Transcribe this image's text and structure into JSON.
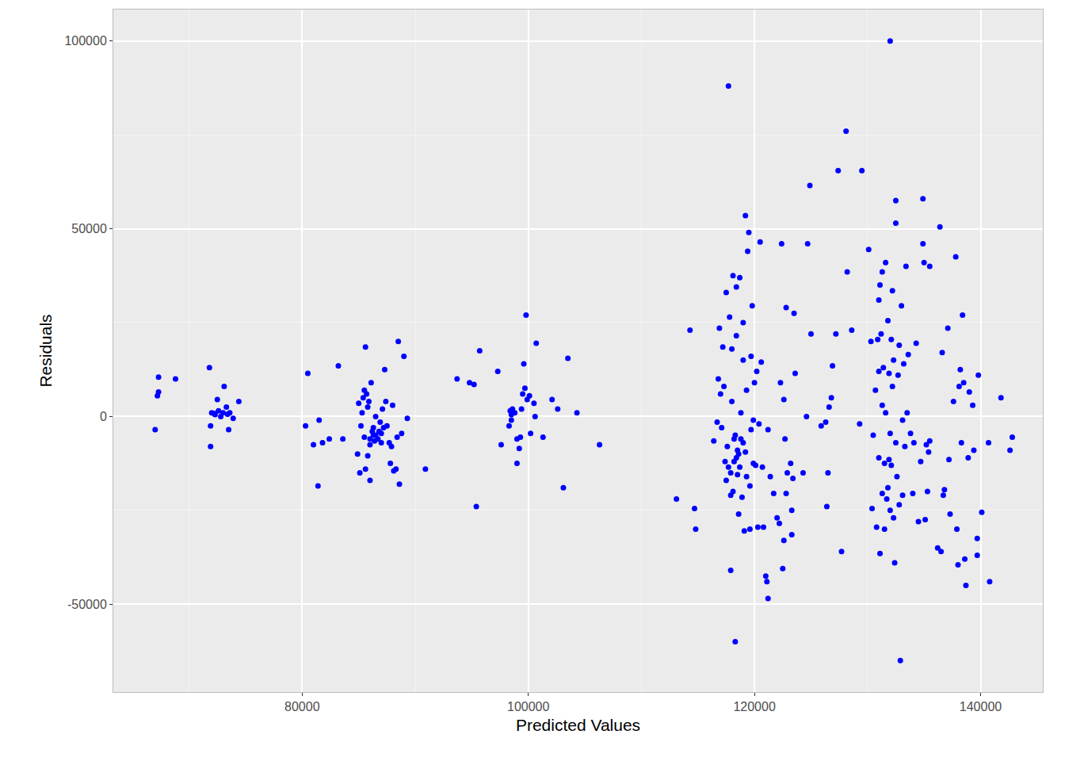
{
  "chart_data": {
    "type": "scatter",
    "xlabel": "Predicted Values",
    "ylabel": "Residuals",
    "color": "#0000ff",
    "marker": "circle",
    "grid": true,
    "xlim": [
      63300,
      145500
    ],
    "ylim": [
      -73400,
      108400
    ],
    "xticks": [
      80000,
      100000,
      120000,
      140000
    ],
    "yticks": [
      -50000,
      0,
      50000,
      100000
    ],
    "x": [
      67000,
      67300,
      67200,
      67300,
      68800,
      71800,
      71900,
      71900,
      72000,
      72300,
      72500,
      72600,
      72800,
      73000,
      73100,
      73300,
      73500,
      73600,
      73900,
      74400,
      72200,
      73400,
      80300,
      80500,
      81000,
      81400,
      81500,
      81800,
      82400,
      83200,
      83600,
      84900,
      85000,
      85100,
      85200,
      85300,
      85400,
      85500,
      85600,
      85600,
      85700,
      85800,
      85800,
      85900,
      86000,
      86000,
      86100,
      86200,
      86300,
      86400,
      86500,
      86500,
      86700,
      86800,
      86900,
      87000,
      87100,
      87200,
      87300,
      87400,
      87500,
      87700,
      87800,
      87900,
      88000,
      88100,
      88300,
      88400,
      88500,
      88600,
      88800,
      89000,
      89300,
      90900,
      86300,
      85500,
      87000,
      86000,
      93700,
      94800,
      95200,
      95400,
      95700,
      97300,
      97600,
      98300,
      98400,
      98500,
      98600,
      98800,
      99000,
      99200,
      99300,
      99400,
      99500,
      99600,
      99700,
      99800,
      99900,
      100100,
      100200,
      100500,
      100600,
      100700,
      101300,
      102100,
      102600,
      103100,
      103500,
      104300,
      106300,
      98500,
      99000,
      113100,
      114300,
      114700,
      114800,
      116400,
      116700,
      116800,
      116900,
      117000,
      117100,
      117200,
      117300,
      117400,
      117500,
      117500,
      117600,
      117700,
      117700,
      117800,
      117900,
      117900,
      118000,
      118000,
      118100,
      118100,
      118200,
      118300,
      118300,
      118400,
      118400,
      118500,
      118500,
      118600,
      118700,
      118700,
      118800,
      118800,
      118900,
      119000,
      119000,
      119100,
      119200,
      119200,
      119300,
      119300,
      119400,
      119500,
      119600,
      119600,
      119700,
      119700,
      119800,
      119900,
      120000,
      120100,
      120200,
      120300,
      120400,
      120500,
      120600,
      120700,
      120800,
      121000,
      121100,
      121200,
      121200,
      121400,
      121700,
      122000,
      122200,
      122300,
      122400,
      122500,
      122600,
      122600,
      122700,
      122800,
      122800,
      122900,
      123200,
      123300,
      123300,
      123400,
      123500,
      123600,
      124300,
      124600,
      124700,
      124900,
      125000,
      125900,
      126300,
      126400,
      126500,
      126600,
      126800,
      126900,
      127200,
      127400,
      127700,
      128200,
      128100,
      128600,
      129500,
      129300,
      118200,
      118600,
      119000,
      117900,
      119900,
      118400,
      130100,
      130300,
      130400,
      130700,
      130800,
      130900,
      131000,
      131000,
      131100,
      131100,
      131200,
      131300,
      131300,
      131400,
      131500,
      131500,
      131600,
      131600,
      131700,
      131800,
      131800,
      131900,
      132000,
      132000,
      132100,
      132100,
      132200,
      132300,
      132300,
      132400,
      132500,
      132500,
      132600,
      132700,
      132800,
      132800,
      132900,
      133000,
      133100,
      133200,
      133300,
      133400,
      133500,
      133600,
      133800,
      134000,
      134100,
      134300,
      134500,
      134700,
      134900,
      134900,
      135000,
      135100,
      135200,
      135300,
      135400,
      135500,
      135500,
      136200,
      136400,
      136500,
      136600,
      136700,
      136800,
      137100,
      137200,
      137300,
      137600,
      137800,
      137900,
      138000,
      138100,
      138200,
      138300,
      138400,
      138500,
      138600,
      138700,
      138900,
      139000,
      139300,
      139400,
      139700,
      139700,
      139800,
      140100,
      140700,
      140800,
      141800,
      142600,
      142800,
      131900,
      132500,
      131300,
      132000,
      133100,
      131000,
      132200,
      130500
    ],
    "values": [
      -3500,
      10500,
      5500,
      6500,
      10000,
      13000,
      -8000,
      -2500,
      1000,
      500,
      4500,
      1500,
      0,
      1000,
      8000,
      2500,
      -3500,
      1000,
      -500,
      4000,
      800,
      600,
      -2500,
      11500,
      -7500,
      -18500,
      -1000,
      -7000,
      -6000,
      13500,
      -6000,
      -10000,
      3500,
      -15000,
      -2500,
      1000,
      5000,
      7000,
      -14000,
      18500,
      6000,
      -10500,
      2500,
      4000,
      -17000,
      -6000,
      9000,
      -4000,
      -3000,
      -6500,
      -5000,
      0,
      -6000,
      -4000,
      -1500,
      -4500,
      2000,
      -3000,
      12500,
      4000,
      -2500,
      -7000,
      -12500,
      -8000,
      3000,
      -14500,
      -14000,
      -5500,
      20000,
      -18000,
      -4500,
      16000,
      -500,
      -14000,
      -5000,
      -5500,
      -7000,
      -7500,
      10000,
      9000,
      8500,
      -24000,
      17500,
      12000,
      -7500,
      -2500,
      1500,
      -1000,
      2000,
      1000,
      -12500,
      -8500,
      -5500,
      2000,
      6000,
      14000,
      7500,
      27000,
      4500,
      5500,
      -4500,
      3500,
      0,
      19500,
      -5500,
      4500,
      2000,
      -19000,
      15500,
      1000,
      -7500,
      500,
      -6000,
      -22000,
      23000,
      -24500,
      -30000,
      -6500,
      -1500,
      10000,
      23500,
      6000,
      -3000,
      18500,
      8000,
      -12000,
      -17000,
      33000,
      -8000,
      -13500,
      88000,
      26500,
      -21000,
      -41000,
      4000,
      18000,
      -20000,
      37500,
      -12000,
      -60000,
      -5000,
      21500,
      34500,
      -9000,
      -15500,
      -26000,
      -13500,
      37000,
      -6000,
      1000,
      -21500,
      15000,
      25000,
      -30500,
      -9500,
      53500,
      7000,
      -16000,
      44000,
      49000,
      -30000,
      -18500,
      -3500,
      16000,
      29500,
      -12500,
      9000,
      -13000,
      12000,
      -29500,
      -2000,
      46500,
      14500,
      -13500,
      -29500,
      -42500,
      -44000,
      -48500,
      -3500,
      -16000,
      -20500,
      -27000,
      -28500,
      9000,
      46000,
      -40500,
      -33000,
      4500,
      -6000,
      29000,
      -20500,
      -15000,
      -12500,
      -31500,
      -25000,
      -16500,
      27500,
      11500,
      -15000,
      0,
      46000,
      61500,
      22000,
      -2500,
      -1500,
      -24000,
      -15000,
      2500,
      5000,
      13500,
      22000,
      65500,
      -36000,
      38500,
      76000,
      23000,
      65500,
      -2000,
      -6000,
      -10000,
      -7000,
      -15000,
      -1000,
      -11000,
      44500,
      20000,
      -24500,
      7000,
      -29500,
      20500,
      12000,
      -11000,
      35000,
      -36500,
      22000,
      3000,
      38500,
      13000,
      -12500,
      -30000,
      41000,
      1000,
      -22000,
      25500,
      -19000,
      11500,
      100000,
      -4500,
      -13000,
      20500,
      33500,
      -27000,
      15000,
      -39000,
      57500,
      51500,
      -16000,
      11000,
      -23500,
      19000,
      -65000,
      29500,
      -21000,
      14000,
      -8000,
      40000,
      1000,
      16500,
      -4500,
      -20500,
      -7000,
      19500,
      -28000,
      -12000,
      58000,
      46000,
      41000,
      -27500,
      -7500,
      -20000,
      -9500,
      -6500,
      40000,
      -35000,
      50500,
      -36000,
      17000,
      -21000,
      -19500,
      23500,
      -11500,
      -26000,
      4000,
      42500,
      -30000,
      -39500,
      8000,
      12500,
      -7000,
      27000,
      9000,
      -38000,
      -45000,
      -11000,
      6500,
      3000,
      -9000,
      -37000,
      -32500,
      11000,
      -25500,
      -7000,
      -44000,
      5000,
      -9000,
      -5500,
      -11500,
      -7000,
      -20500,
      -25000,
      -1000,
      31000,
      8000,
      -5000
    ]
  }
}
